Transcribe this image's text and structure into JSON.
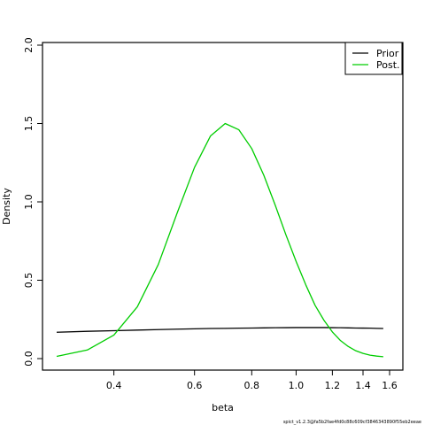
{
  "chart_data": {
    "type": "line",
    "xlabel": "beta",
    "ylabel": "Density",
    "x_scale": "log",
    "xlim": [
      0.3,
      1.6
    ],
    "ylim": [
      0.0,
      2.0
    ],
    "x_ticks": [
      0.4,
      0.6,
      0.8,
      1.0,
      1.2,
      1.4,
      1.6
    ],
    "x_tick_labels": [
      "0.4",
      "0.6",
      "0.8",
      "1.0",
      "1.2",
      "1.4",
      "1.6"
    ],
    "y_ticks": [
      0.0,
      0.5,
      1.0,
      1.5,
      2.0
    ],
    "y_tick_labels": [
      "0.0",
      "0.5",
      "1.0",
      "1.5",
      "2.0"
    ],
    "legend_position": "top-right",
    "grid": false,
    "series": [
      {
        "name": "Prior",
        "color": "#000000",
        "x": [
          0.3,
          0.35,
          0.4,
          0.45,
          0.5,
          0.55,
          0.6,
          0.65,
          0.7,
          0.75,
          0.8,
          0.85,
          0.9,
          0.95,
          1.0,
          1.05,
          1.1,
          1.15,
          1.2,
          1.25,
          1.3,
          1.35,
          1.4,
          1.45,
          1.5,
          1.55
        ],
        "values": [
          0.168,
          0.174,
          0.178,
          0.182,
          0.185,
          0.188,
          0.19,
          0.192,
          0.193,
          0.194,
          0.195,
          0.196,
          0.197,
          0.1975,
          0.198,
          0.198,
          0.198,
          0.198,
          0.1975,
          0.197,
          0.196,
          0.195,
          0.1945,
          0.194,
          0.193,
          0.192
        ]
      },
      {
        "name": "Post.",
        "color": "#00cd00",
        "x": [
          0.3,
          0.35,
          0.4,
          0.45,
          0.5,
          0.55,
          0.6,
          0.65,
          0.7,
          0.75,
          0.8,
          0.85,
          0.9,
          0.95,
          1.0,
          1.05,
          1.1,
          1.15,
          1.2,
          1.25,
          1.3,
          1.35,
          1.4,
          1.45,
          1.5,
          1.55
        ],
        "values": [
          0.014,
          0.055,
          0.15,
          0.33,
          0.6,
          0.93,
          1.22,
          1.42,
          1.5,
          1.46,
          1.34,
          1.17,
          0.98,
          0.79,
          0.62,
          0.47,
          0.34,
          0.245,
          0.17,
          0.115,
          0.077,
          0.05,
          0.033,
          0.022,
          0.016,
          0.012
        ]
      }
    ],
    "footnote": "spict_v1.2.3@fa5b2fae4fd0c88c609cf3846343890f55eb2eeae"
  }
}
